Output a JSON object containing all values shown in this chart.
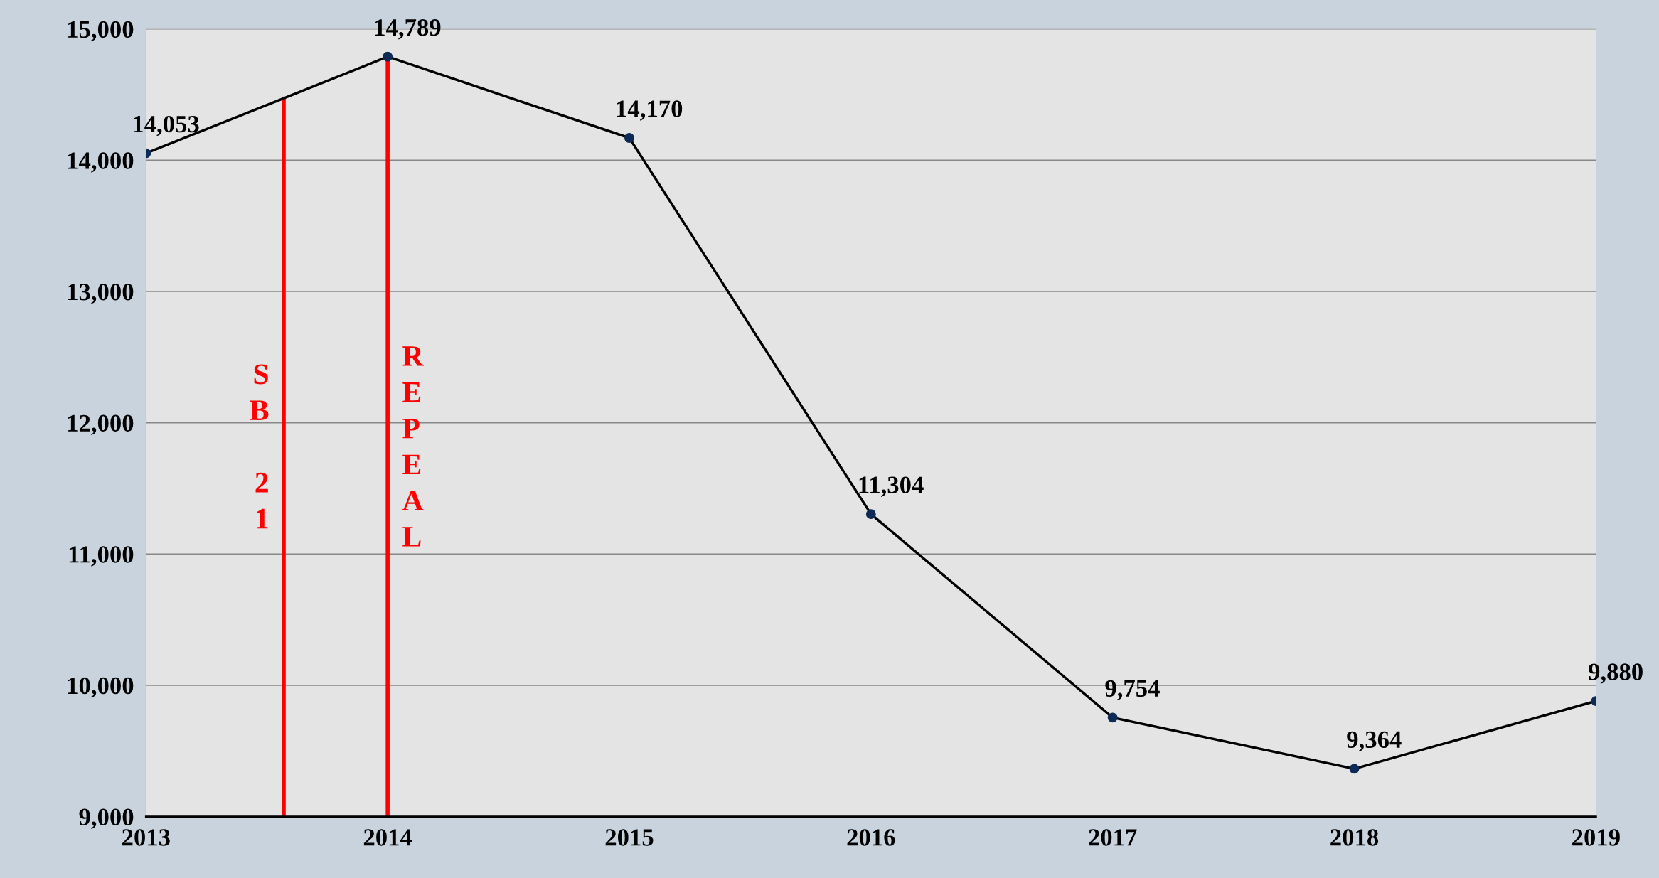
{
  "chart_data": {
    "type": "line",
    "x": [
      2013,
      2014,
      2015,
      2016,
      2017,
      2018,
      2019
    ],
    "series": [
      {
        "color": "#000000",
        "values": [
          14053,
          14789,
          14170,
          11304,
          9754,
          9364,
          9880
        ]
      }
    ],
    "xlim": [
      2013,
      2019
    ],
    "xticks": [
      2013,
      2014,
      2015,
      2016,
      2017,
      2018,
      2019
    ],
    "ylim": [
      9000,
      15000
    ],
    "yticks": [
      {
        "value": 9000,
        "label": "9,000"
      },
      {
        "value": 10000,
        "label": "10,000"
      },
      {
        "value": 11000,
        "label": "11,000"
      },
      {
        "value": 12000,
        "label": "12,000"
      },
      {
        "value": 13000,
        "label": "13,000"
      },
      {
        "value": 14000,
        "label": "14,000"
      },
      {
        "value": 15000,
        "label": "15,000"
      }
    ],
    "grid": "y",
    "marker": "circle",
    "line_style": "solid",
    "value_labels": [
      "14,053",
      "14,789",
      "14,170",
      "11,304",
      "9,754",
      "9,364",
      "9,880"
    ],
    "ref_lines": [
      {
        "axis": "x",
        "value": 2013.57,
        "label": "SB 21",
        "color": "#ff0000"
      },
      {
        "axis": "x",
        "value": 2014,
        "label": "REPEAL",
        "color": "#ff0000"
      }
    ]
  }
}
